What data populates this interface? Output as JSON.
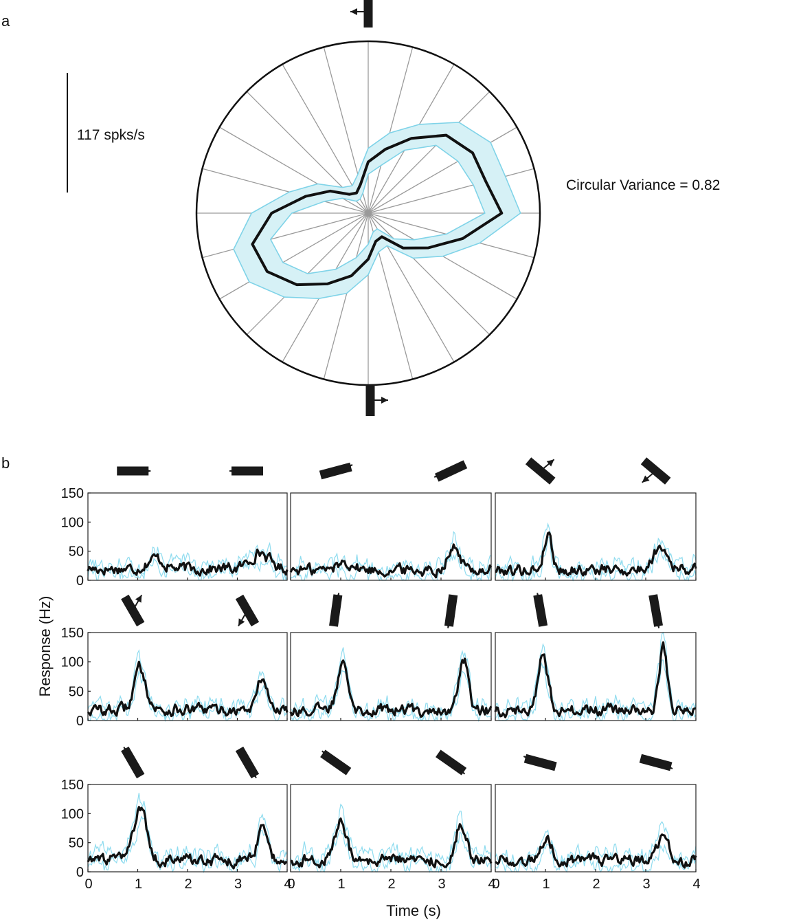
{
  "panel_labels": {
    "a": "a",
    "b": "b"
  },
  "chart_data": [
    {
      "type": "polar",
      "panel": "a",
      "scale_bar_label": "117 spks/s",
      "annotation": "Circular Variance = 0.82",
      "n_directions": 24,
      "direction_step_deg": 15,
      "radial_max_spks": 265,
      "mean_response_spks": [
        206,
        188,
        186,
        170,
        133,
        102,
        79,
        46,
        36,
        41,
        68,
        100,
        149,
        185,
        180,
        156,
        126,
        100,
        71,
        45,
        42,
        76,
        107,
        151
      ],
      "band_lower_spks": [
        180,
        168,
        160,
        148,
        112,
        76,
        60,
        32,
        25,
        26,
        46,
        70,
        118,
        156,
        152,
        132,
        100,
        71,
        48,
        30,
        28,
        56,
        82,
        125
      ],
      "band_upper_spks": [
        235,
        219,
        218,
        198,
        158,
        128,
        100,
        62,
        49,
        56,
        90,
        126,
        180,
        215,
        212,
        183,
        152,
        128,
        95,
        62,
        58,
        98,
        133,
        178
      ],
      "top_glyph_label": "bar-arrow-left",
      "bottom_glyph_label": "bar-arrow-right",
      "colors": {
        "mean": "#111111",
        "band_fill": "#d6f1f6",
        "band_edge": "#7fd3e8",
        "spokes": "#9a9a9a",
        "circle": "#111111"
      }
    },
    {
      "type": "line",
      "panel": "b",
      "ylabel": "Response (Hz)",
      "xlabel": "Time (s)",
      "xlim": [
        0,
        4
      ],
      "ylim": [
        0,
        150
      ],
      "xticks": [
        "0",
        "1",
        "2",
        "3",
        "4"
      ],
      "yticks": [
        "0",
        "50",
        "100",
        "150"
      ],
      "colors": {
        "mean": "#111111",
        "trials": "#8fdcef"
      },
      "subplots": [
        {
          "row": 0,
          "col": 0,
          "orientations_deg": [
            90,
            90
          ],
          "arrow_dirs_deg": [
            0,
            180
          ],
          "baseline": 20,
          "peaks": [
            {
              "t": 1.35,
              "amp": 18,
              "w": 0.16
            },
            {
              "t": 3.45,
              "amp": 28,
              "w": 0.18
            }
          ]
        },
        {
          "row": 0,
          "col": 1,
          "orientations_deg": [
            75,
            65
          ],
          "arrow_dirs_deg": [
            20,
            200
          ],
          "baseline": 18,
          "peaks": [
            {
              "t": 1.1,
              "amp": 14,
              "w": 0.15
            },
            {
              "t": 3.25,
              "amp": 38,
              "w": 0.12
            }
          ]
        },
        {
          "row": 0,
          "col": 2,
          "orientations_deg": [
            -50,
            -50
          ],
          "arrow_dirs_deg": [
            40,
            220
          ],
          "baseline": 18,
          "peaks": [
            {
              "t": 1.05,
              "amp": 62,
              "w": 0.08
            },
            {
              "t": 3.3,
              "amp": 42,
              "w": 0.14
            }
          ]
        },
        {
          "row": 1,
          "col": 0,
          "orientations_deg": [
            -30,
            -30
          ],
          "arrow_dirs_deg": [
            60,
            240
          ],
          "baseline": 18,
          "peaks": [
            {
              "t": 1.05,
              "amp": 72,
              "w": 0.12
            },
            {
              "t": 3.5,
              "amp": 55,
              "w": 0.1
            }
          ]
        },
        {
          "row": 1,
          "col": 1,
          "orientations_deg": [
            8,
            8
          ],
          "arrow_dirs_deg": [
            80,
            260
          ],
          "baseline": 18,
          "peaks": [
            {
              "t": 1.05,
              "amp": 85,
              "w": 0.11
            },
            {
              "t": 3.45,
              "amp": 88,
              "w": 0.09
            }
          ]
        },
        {
          "row": 1,
          "col": 2,
          "orientations_deg": [
            -10,
            -10
          ],
          "arrow_dirs_deg": [
            100,
            280
          ],
          "baseline": 18,
          "peaks": [
            {
              "t": 0.95,
              "amp": 92,
              "w": 0.1
            },
            {
              "t": 3.35,
              "amp": 105,
              "w": 0.08
            }
          ]
        },
        {
          "row": 2,
          "col": 0,
          "orientations_deg": [
            -30,
            -30
          ],
          "arrow_dirs_deg": [
            120,
            300
          ],
          "baseline": 20,
          "peaks": [
            {
              "t": 1.05,
              "amp": 88,
              "w": 0.13
            },
            {
              "t": 3.5,
              "amp": 62,
              "w": 0.09
            }
          ]
        },
        {
          "row": 2,
          "col": 1,
          "orientations_deg": [
            -55,
            -55
          ],
          "arrow_dirs_deg": [
            140,
            320
          ],
          "baseline": 20,
          "peaks": [
            {
              "t": 1.0,
              "amp": 68,
              "w": 0.11
            },
            {
              "t": 3.4,
              "amp": 62,
              "w": 0.11
            }
          ]
        },
        {
          "row": 2,
          "col": 2,
          "orientations_deg": [
            -75,
            -75
          ],
          "arrow_dirs_deg": [
            160,
            340
          ],
          "baseline": 20,
          "peaks": [
            {
              "t": 1.0,
              "amp": 38,
              "w": 0.12
            },
            {
              "t": 3.35,
              "amp": 44,
              "w": 0.1
            }
          ]
        }
      ]
    }
  ]
}
